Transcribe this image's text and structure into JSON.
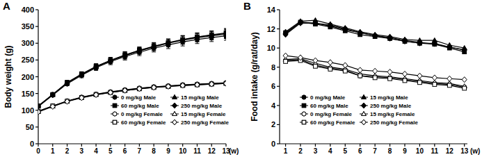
{
  "chart_data": [
    {
      "type": "line",
      "title": "A",
      "x_label": "(w)",
      "y_label": "Body weight (g)",
      "x": [
        0,
        1,
        2,
        3,
        4,
        5,
        6,
        7,
        8,
        9,
        10,
        11,
        12,
        13
      ],
      "xlim": [
        0,
        13
      ],
      "xticks": [
        0,
        1,
        2,
        3,
        4,
        5,
        6,
        7,
        8,
        9,
        10,
        11,
        12,
        13
      ],
      "ylim": [
        0,
        400
      ],
      "yticks": [
        0,
        50,
        100,
        150,
        200,
        250,
        300,
        350,
        400
      ],
      "grid": false,
      "legend": "lower right",
      "series": [
        {
          "name": "0 mg/kg Male",
          "color": "#000000",
          "marker": "filled-circle",
          "values": [
            113,
            147,
            182,
            207,
            230,
            248,
            264,
            278,
            290,
            301,
            310,
            318,
            324,
            329
          ],
          "errors": [
            3,
            4,
            6,
            7,
            8,
            9,
            10,
            10,
            11,
            11,
            12,
            12,
            12,
            13
          ]
        },
        {
          "name": "15 mg/kg Male",
          "color": "#000000",
          "marker": "filled-triangle",
          "values": [
            112,
            146,
            181,
            206,
            229,
            248,
            263,
            277,
            289,
            300,
            309,
            316,
            322,
            327
          ],
          "errors": [
            3,
            4,
            6,
            7,
            8,
            9,
            10,
            10,
            11,
            11,
            12,
            12,
            12,
            13
          ]
        },
        {
          "name": "60 mg/kg Male",
          "color": "#000000",
          "marker": "filled-square",
          "values": [
            113,
            147,
            183,
            208,
            231,
            249,
            265,
            279,
            291,
            302,
            311,
            319,
            325,
            331
          ],
          "errors": [
            3,
            4,
            6,
            7,
            8,
            9,
            10,
            10,
            11,
            11,
            12,
            12,
            12,
            13
          ]
        },
        {
          "name": "250 mg/kg Male",
          "color": "#000000",
          "marker": "filled-diamond",
          "values": [
            111,
            145,
            179,
            204,
            227,
            245,
            260,
            273,
            285,
            295,
            304,
            311,
            317,
            322
          ],
          "errors": [
            3,
            4,
            6,
            7,
            8,
            9,
            10,
            10,
            11,
            11,
            12,
            12,
            12,
            13
          ]
        },
        {
          "name": "0 mg/kg Female",
          "color": "#000000",
          "marker": "open-circle",
          "values": [
            97,
            113,
            128,
            139,
            148,
            155,
            161,
            166,
            170,
            173,
            176,
            178,
            180,
            182
          ]
        },
        {
          "name": "15 mg/kg Female",
          "color": "#000000",
          "marker": "open-triangle",
          "values": [
            96,
            112,
            127,
            138,
            147,
            154,
            160,
            165,
            169,
            172,
            175,
            177,
            179,
            181
          ]
        },
        {
          "name": "60 mg/kg Female",
          "color": "#000000",
          "marker": "open-square",
          "values": [
            97,
            113,
            127,
            138,
            147,
            153,
            159,
            164,
            168,
            171,
            174,
            176,
            178,
            180
          ]
        },
        {
          "name": "250 mg/kg Female",
          "color": "#000000",
          "marker": "open-diamond",
          "values": [
            95,
            111,
            126,
            137,
            146,
            153,
            159,
            164,
            168,
            171,
            174,
            176,
            178,
            180
          ]
        }
      ]
    },
    {
      "type": "line",
      "title": "B",
      "x_label": "(w)",
      "y_label": "Food intake (g/rat/day)",
      "x": [
        1,
        2,
        3,
        4,
        5,
        6,
        7,
        8,
        9,
        10,
        11,
        12,
        13
      ],
      "xlim": [
        0.6,
        13.2
      ],
      "xticks": [
        1,
        2,
        3,
        4,
        5,
        6,
        7,
        8,
        9,
        10,
        11,
        12,
        13
      ],
      "ylim": [
        0,
        14
      ],
      "yticks": [
        0,
        2,
        4,
        6,
        8,
        10,
        12,
        14
      ],
      "grid": false,
      "legend": "lower center",
      "series": [
        {
          "name": "0 mg/kg Male",
          "color": "#000000",
          "marker": "filled-circle",
          "values": [
            11.5,
            12.7,
            12.6,
            12.4,
            12.0,
            11.6,
            11.3,
            11.1,
            10.8,
            10.6,
            10.4,
            10.1,
            9.8
          ]
        },
        {
          "name": "15 mg/kg Male",
          "color": "#000000",
          "marker": "filled-triangle",
          "values": [
            11.7,
            12.8,
            12.9,
            12.5,
            12.1,
            11.7,
            11.4,
            11.2,
            10.9,
            10.8,
            10.8,
            10.3,
            10.0
          ]
        },
        {
          "name": "60 mg/kg Male",
          "color": "#000000",
          "marker": "filled-square",
          "values": [
            11.6,
            12.7,
            12.5,
            12.2,
            11.8,
            11.4,
            11.2,
            11.0,
            10.7,
            10.5,
            10.4,
            10.0,
            9.6
          ]
        },
        {
          "name": "250 mg/kg Male",
          "color": "#000000",
          "marker": "filled-diamond",
          "values": [
            11.4,
            12.6,
            12.6,
            12.3,
            11.9,
            11.6,
            11.3,
            11.0,
            10.7,
            10.5,
            10.5,
            10.1,
            9.8
          ]
        },
        {
          "name": "0 mg/kg Female",
          "color": "#000000",
          "marker": "open-circle",
          "values": [
            8.7,
            8.8,
            8.2,
            7.9,
            7.7,
            7.1,
            7.0,
            6.9,
            6.7,
            6.5,
            6.3,
            6.2,
            5.9
          ]
        },
        {
          "name": "15 mg/kg Female",
          "color": "#000000",
          "marker": "open-triangle",
          "values": [
            8.8,
            8.9,
            8.4,
            8.0,
            7.8,
            7.3,
            7.1,
            7.0,
            6.8,
            6.6,
            6.4,
            6.3,
            6.0
          ]
        },
        {
          "name": "60 mg/kg Female",
          "color": "#000000",
          "marker": "open-square",
          "values": [
            8.6,
            8.7,
            8.1,
            7.8,
            7.6,
            7.1,
            6.9,
            6.8,
            6.6,
            6.4,
            6.2,
            6.1,
            5.8
          ]
        },
        {
          "name": "250 mg/kg Female",
          "color": "#000000",
          "marker": "open-diamond",
          "values": [
            9.2,
            9.0,
            8.7,
            8.5,
            8.2,
            7.7,
            7.6,
            7.5,
            7.3,
            7.1,
            6.9,
            6.8,
            6.7
          ]
        }
      ]
    }
  ]
}
